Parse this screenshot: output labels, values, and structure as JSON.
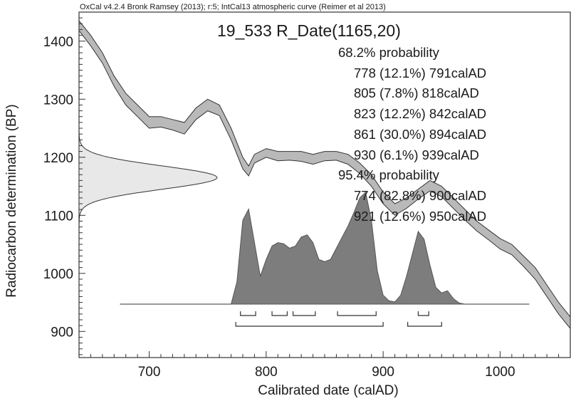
{
  "header": {
    "program_line": "OxCal v4.2.4 Bronk Ramsey (2013); r:5; IntCal13 atmospheric curve (Reimer et al 2013)"
  },
  "title": "19_533 R_Date(1165,20)",
  "probabilities": {
    "sigma1_label": "68.2% probability",
    "sigma1_ranges": [
      "778 (12.1%) 791calAD",
      "805 (7.8%) 818calAD",
      "823 (12.2%) 842calAD",
      "861 (30.0%) 894calAD",
      "930 (6.1%) 939calAD"
    ],
    "sigma2_label": "95.4% probability",
    "sigma2_ranges": [
      "774 (82.8%) 900calAD",
      "921 (12.6%) 950calAD"
    ]
  },
  "colors": {
    "curve_fill": "#b9b9b9",
    "posterior_fill": "#7d7d7d",
    "prior_fill": "#e8e8e8",
    "line": "#333333"
  },
  "chart_data": {
    "type": "area",
    "xlabel": "Calibrated date (calAD)",
    "ylabel": "Radiocarbon determination (BP)",
    "xlim": [
      640,
      1060
    ],
    "ylim": [
      855,
      1450
    ],
    "x_ticks": [
      700,
      800,
      900,
      1000
    ],
    "y_ticks": [
      900,
      1000,
      1100,
      1200,
      1300,
      1400
    ],
    "calibration_curve": {
      "x": [
        640,
        650,
        660,
        670,
        680,
        690,
        700,
        710,
        720,
        730,
        740,
        750,
        760,
        770,
        780,
        785,
        790,
        800,
        810,
        820,
        830,
        840,
        850,
        860,
        870,
        880,
        890,
        900,
        910,
        920,
        930,
        940,
        950,
        960,
        970,
        980,
        990,
        1000,
        1010,
        1020,
        1030,
        1040,
        1050,
        1060
      ],
      "upper": [
        1435,
        1410,
        1380,
        1340,
        1310,
        1290,
        1270,
        1270,
        1265,
        1260,
        1285,
        1300,
        1290,
        1250,
        1200,
        1185,
        1205,
        1215,
        1210,
        1210,
        1210,
        1205,
        1210,
        1210,
        1205,
        1190,
        1170,
        1140,
        1120,
        1130,
        1145,
        1160,
        1150,
        1130,
        1110,
        1090,
        1075,
        1060,
        1050,
        1030,
        1010,
        980,
        950,
        925
      ],
      "lower": [
        1418,
        1392,
        1362,
        1322,
        1290,
        1270,
        1250,
        1252,
        1247,
        1240,
        1265,
        1280,
        1272,
        1230,
        1180,
        1168,
        1190,
        1200,
        1194,
        1195,
        1193,
        1188,
        1194,
        1195,
        1188,
        1172,
        1150,
        1120,
        1100,
        1112,
        1128,
        1142,
        1132,
        1112,
        1092,
        1073,
        1058,
        1042,
        1032,
        1012,
        990,
        960,
        930,
        905
      ]
    },
    "radiocarbon_distribution": {
      "mean_bp": 1165,
      "sigma_bp": 20
    },
    "calibrated_distribution": {
      "x": [
        770,
        775,
        780,
        785,
        790,
        795,
        800,
        805,
        810,
        815,
        820,
        825,
        830,
        835,
        840,
        845,
        850,
        855,
        860,
        865,
        870,
        875,
        880,
        885,
        890,
        895,
        900,
        905,
        910,
        915,
        920,
        925,
        930,
        935,
        940,
        945,
        950,
        955,
        960,
        965,
        970
      ],
      "density": [
        0.0,
        0.2,
        0.75,
        0.85,
        0.55,
        0.25,
        0.4,
        0.52,
        0.55,
        0.54,
        0.5,
        0.52,
        0.6,
        0.62,
        0.55,
        0.4,
        0.38,
        0.4,
        0.5,
        0.6,
        0.7,
        0.82,
        0.95,
        1.0,
        0.75,
        0.3,
        0.08,
        0.03,
        0.02,
        0.08,
        0.25,
        0.45,
        0.65,
        0.58,
        0.35,
        0.15,
        0.1,
        0.12,
        0.05,
        0.01,
        0.0
      ]
    },
    "sigma1_ranges": [
      [
        778,
        791
      ],
      [
        805,
        818
      ],
      [
        823,
        842
      ],
      [
        861,
        894
      ],
      [
        930,
        939
      ]
    ],
    "sigma2_ranges": [
      [
        774,
        900
      ],
      [
        921,
        950
      ]
    ],
    "baseline_range": [
      675,
      1025
    ]
  }
}
